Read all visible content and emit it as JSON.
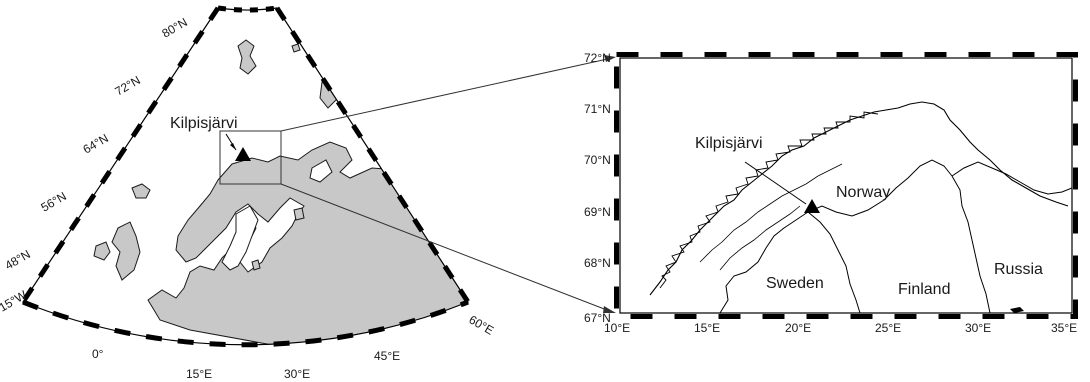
{
  "overview_map": {
    "site_label": "Kilpisjärvi",
    "lat_labels": [
      "80°N",
      "72°N",
      "64°N",
      "56°N",
      "48°N"
    ],
    "lon_labels": [
      "15°W",
      "0°",
      "15°E",
      "30°E",
      "45°E",
      "60°E"
    ]
  },
  "detail_map": {
    "site_label": "Kilpisjärvi",
    "lat_labels": [
      "72°N",
      "71°N",
      "70°N",
      "69°N",
      "68°N",
      "67°N"
    ],
    "lon_labels": [
      "10°E",
      "15°E",
      "20°E",
      "25°E",
      "30°E",
      "35°E"
    ],
    "countries": {
      "norway": "Norway",
      "sweden": "Sweden",
      "finland": "Finland",
      "russia": "Russia"
    }
  },
  "colors": {
    "land": "#c8c8c8",
    "ink": "#1a1a1a",
    "frame_dark": "#000000"
  }
}
